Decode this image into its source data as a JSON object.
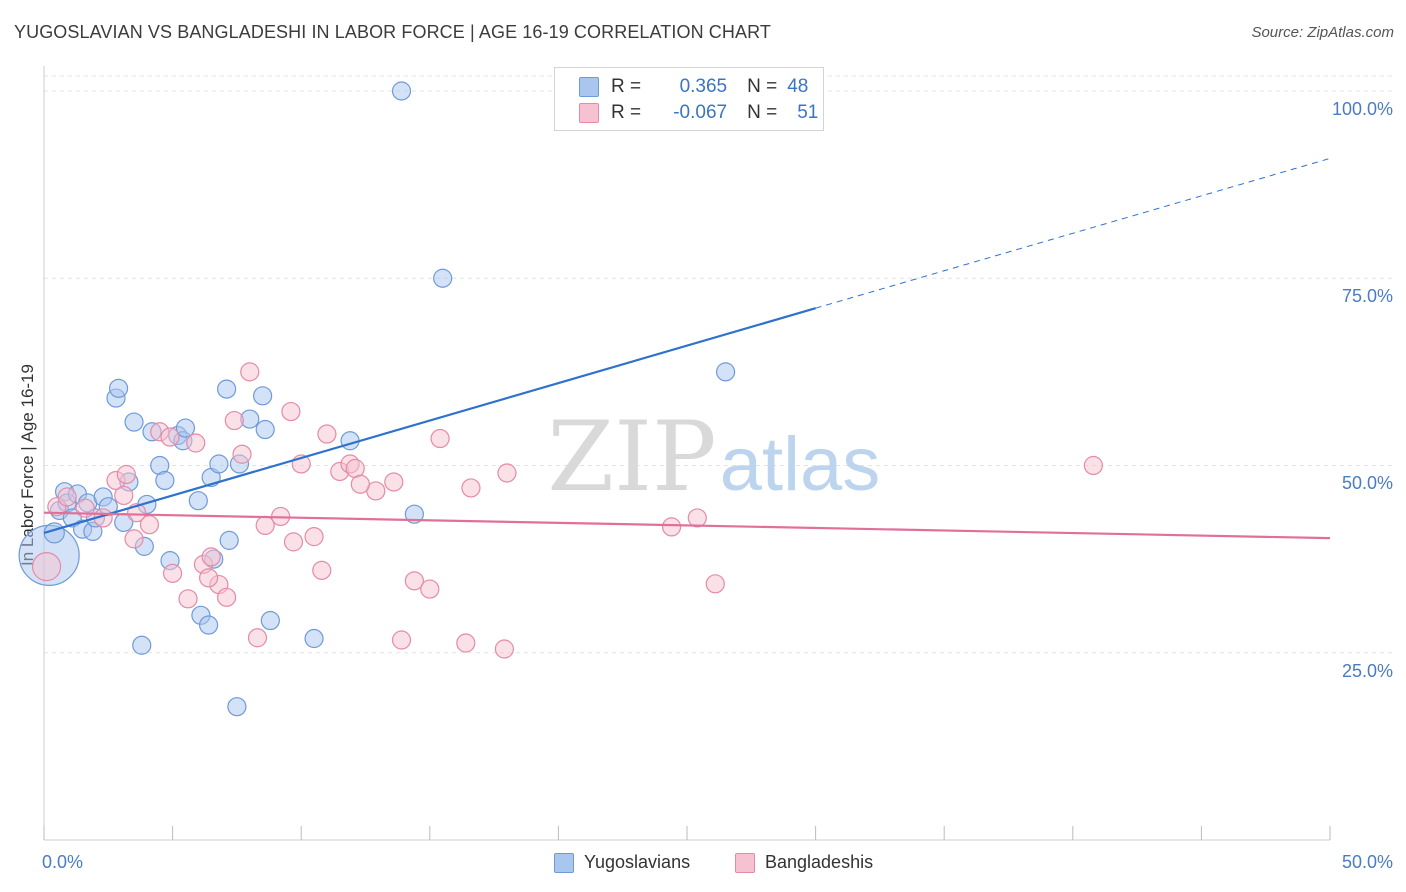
{
  "title": "YUGOSLAVIAN VS BANGLADESHI IN LABOR FORCE | AGE 16-19 CORRELATION CHART",
  "source": "Source: ZipAtlas.com",
  "watermark": {
    "zip": "ZIP",
    "atlas": "atlas"
  },
  "legend": {
    "rows": [
      {
        "r_label": "R =",
        "r_value": "0.365",
        "n_label": "N =",
        "n_value": "48",
        "color": "#a9c6ef",
        "border": "#6f9ad8"
      },
      {
        "r_label": "R =",
        "r_value": "-0.067",
        "n_label": "N =",
        "n_value": "51",
        "color": "#f6c1d0",
        "border": "#e68aa6"
      }
    ]
  },
  "bottom_legend": {
    "series1": "Yugoslavians",
    "series2": "Bangladeshis"
  },
  "chart_data": {
    "type": "scatter",
    "title": "YUGOSLAVIAN VS BANGLADESHI IN LABOR FORCE | AGE 16-19 CORRELATION CHART",
    "xlabel": "",
    "ylabel": "In Labor Force | Age 16-19",
    "xlim": [
      0,
      50
    ],
    "ylim": [
      0,
      102
    ],
    "x_tick_labels": [
      "0.0%",
      "50.0%"
    ],
    "y_ticks": [
      25,
      50,
      75,
      100
    ],
    "y_tick_labels": [
      "25.0%",
      "50.0%",
      "75.0%",
      "100.0%"
    ],
    "grid": true,
    "legend_position": "top-center",
    "series": [
      {
        "name": "Yugoslavians",
        "color": "#6f9ad8",
        "fill": "#a9c6ef",
        "trend_color": "#2f72cc",
        "trend": {
          "x0": 0,
          "y0": 41.0,
          "x1": 30,
          "y1": 71.0,
          "dashed_to_x": 50,
          "dashed_to_y": 91.0
        },
        "points": [
          [
            0.2,
            38.0,
            30
          ],
          [
            0.4,
            41.0,
            10
          ],
          [
            0.6,
            44.0,
            9
          ],
          [
            0.8,
            46.5,
            9
          ],
          [
            0.9,
            45.0,
            9
          ],
          [
            1.1,
            43.0,
            9
          ],
          [
            1.3,
            46.2,
            9
          ],
          [
            1.5,
            41.5,
            9
          ],
          [
            1.7,
            45.0,
            9
          ],
          [
            1.9,
            41.2,
            9
          ],
          [
            2.0,
            43.0,
            9
          ],
          [
            2.3,
            45.8,
            9
          ],
          [
            2.5,
            44.5,
            9
          ],
          [
            2.8,
            59.0,
            9
          ],
          [
            2.9,
            60.3,
            9
          ],
          [
            3.1,
            42.4,
            9
          ],
          [
            3.3,
            47.8,
            9
          ],
          [
            3.5,
            55.8,
            9
          ],
          [
            3.8,
            26.0,
            9
          ],
          [
            3.9,
            39.2,
            9
          ],
          [
            4.0,
            44.8,
            9
          ],
          [
            4.2,
            54.5,
            9
          ],
          [
            4.5,
            50.0,
            9
          ],
          [
            4.7,
            48.0,
            9
          ],
          [
            4.9,
            37.3,
            9
          ],
          [
            5.2,
            54.0,
            9
          ],
          [
            5.4,
            53.3,
            9
          ],
          [
            5.5,
            55.0,
            9
          ],
          [
            6.0,
            45.3,
            9
          ],
          [
            6.1,
            30.0,
            9
          ],
          [
            6.4,
            28.7,
            9
          ],
          [
            6.5,
            48.4,
            9
          ],
          [
            6.6,
            37.5,
            9
          ],
          [
            6.8,
            50.2,
            9
          ],
          [
            7.1,
            60.2,
            9
          ],
          [
            7.2,
            40.0,
            9
          ],
          [
            7.5,
            17.8,
            9
          ],
          [
            7.6,
            50.2,
            9
          ],
          [
            8.0,
            56.2,
            9
          ],
          [
            8.5,
            59.3,
            9
          ],
          [
            8.6,
            54.8,
            9
          ],
          [
            8.8,
            29.3,
            9
          ],
          [
            10.5,
            26.9,
            9
          ],
          [
            11.9,
            53.3,
            9
          ],
          [
            13.9,
            100.0,
            9
          ],
          [
            14.4,
            43.5,
            9
          ],
          [
            15.5,
            75.0,
            9
          ],
          [
            26.5,
            62.5,
            9
          ]
        ]
      },
      {
        "name": "Bangladeshis",
        "color": "#e68aa6",
        "fill": "#f6c1d0",
        "trend_color": "#e0709a",
        "trend": {
          "x0": 0,
          "y0": 43.7,
          "x1": 50,
          "y1": 40.3
        },
        "points": [
          [
            0.1,
            36.5,
            14
          ],
          [
            0.5,
            44.5,
            9
          ],
          [
            0.9,
            45.8,
            9
          ],
          [
            1.6,
            44.3,
            9
          ],
          [
            2.3,
            43.0,
            9
          ],
          [
            2.8,
            48.0,
            9
          ],
          [
            3.2,
            48.8,
            9
          ],
          [
            3.5,
            40.2,
            9
          ],
          [
            3.6,
            43.7,
            9
          ],
          [
            4.1,
            42.1,
            9
          ],
          [
            4.5,
            54.5,
            9
          ],
          [
            4.9,
            53.8,
            9
          ],
          [
            5.0,
            35.6,
            9
          ],
          [
            5.6,
            32.2,
            9
          ],
          [
            5.9,
            53.0,
            9
          ],
          [
            6.2,
            36.8,
            9
          ],
          [
            6.5,
            37.8,
            9
          ],
          [
            6.8,
            34.1,
            9
          ],
          [
            7.1,
            32.4,
            9
          ],
          [
            7.4,
            56.0,
            9
          ],
          [
            7.7,
            51.5,
            9
          ],
          [
            8.0,
            62.5,
            9
          ],
          [
            8.3,
            27.0,
            9
          ],
          [
            8.6,
            42.0,
            9
          ],
          [
            9.2,
            43.2,
            9
          ],
          [
            9.6,
            57.2,
            9
          ],
          [
            9.7,
            39.8,
            9
          ],
          [
            10.0,
            50.2,
            9
          ],
          [
            10.5,
            40.5,
            9
          ],
          [
            10.8,
            36.0,
            9
          ],
          [
            11.0,
            54.2,
            9
          ],
          [
            11.5,
            49.2,
            9
          ],
          [
            11.9,
            50.2,
            9
          ],
          [
            12.1,
            49.6,
            9
          ],
          [
            12.9,
            46.6,
            9
          ],
          [
            13.6,
            47.8,
            9
          ],
          [
            13.9,
            26.7,
            9
          ],
          [
            14.4,
            34.6,
            9
          ],
          [
            15.0,
            33.5,
            9
          ],
          [
            15.4,
            53.6,
            9
          ],
          [
            16.4,
            26.3,
            9
          ],
          [
            16.6,
            47.0,
            9
          ],
          [
            17.9,
            25.5,
            9
          ],
          [
            18.0,
            49.0,
            9
          ],
          [
            24.4,
            41.8,
            9
          ],
          [
            25.4,
            43.0,
            9
          ],
          [
            26.1,
            34.2,
            9
          ],
          [
            40.8,
            50.0,
            9
          ],
          [
            6.4,
            35.0,
            9
          ],
          [
            3.1,
            46.0,
            9
          ],
          [
            12.3,
            47.5,
            9
          ]
        ]
      }
    ]
  }
}
